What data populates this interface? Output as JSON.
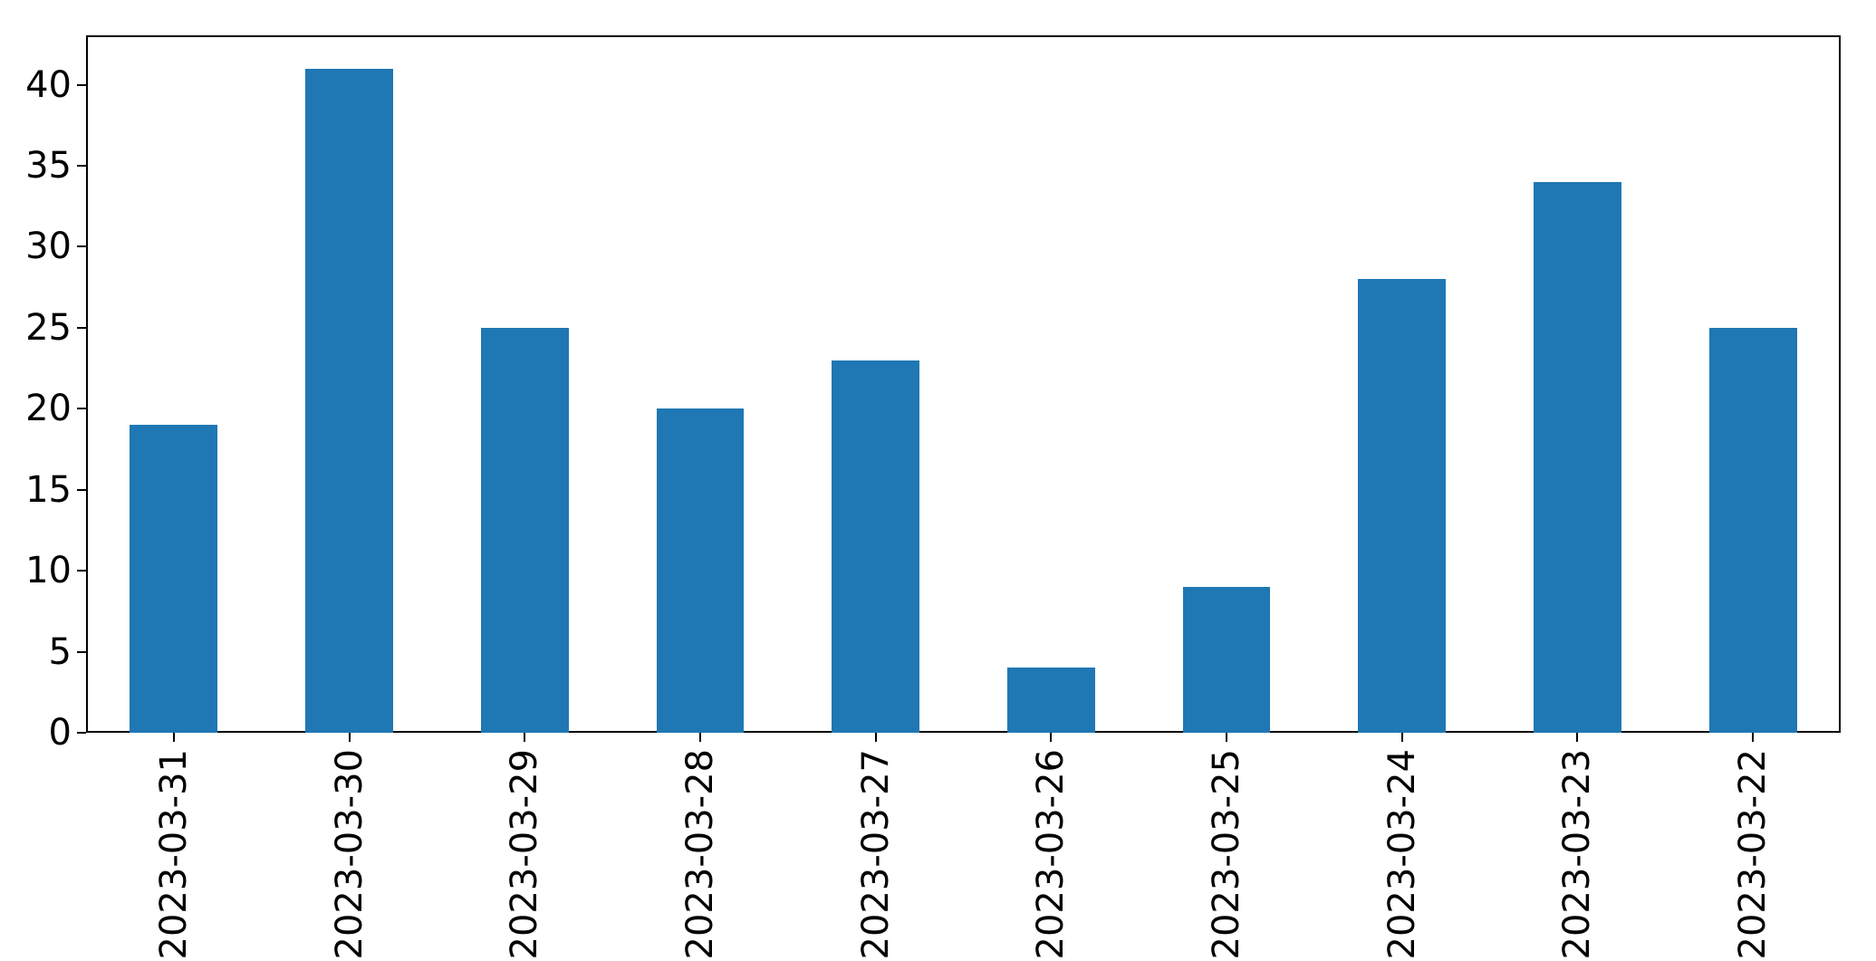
{
  "figure": {
    "background": "#ffffff"
  },
  "chart_data": {
    "type": "bar",
    "categories": [
      "2023-03-31",
      "2023-03-30",
      "2023-03-29",
      "2023-03-28",
      "2023-03-27",
      "2023-03-26",
      "2023-03-25",
      "2023-03-24",
      "2023-03-23",
      "2023-03-22"
    ],
    "values": [
      19,
      41,
      25,
      20,
      23,
      4,
      9,
      28,
      34,
      25
    ],
    "title": "",
    "xlabel": "",
    "ylabel": "",
    "ylim": [
      0,
      43.05
    ],
    "yticks": [
      0,
      5,
      10,
      15,
      20,
      25,
      30,
      35,
      40
    ],
    "x_tick_rotation": 90,
    "bar_color": "#1f77b4",
    "axis_color": "#000000",
    "bar_width_fraction": 0.5,
    "grid": false,
    "legend": null
  }
}
